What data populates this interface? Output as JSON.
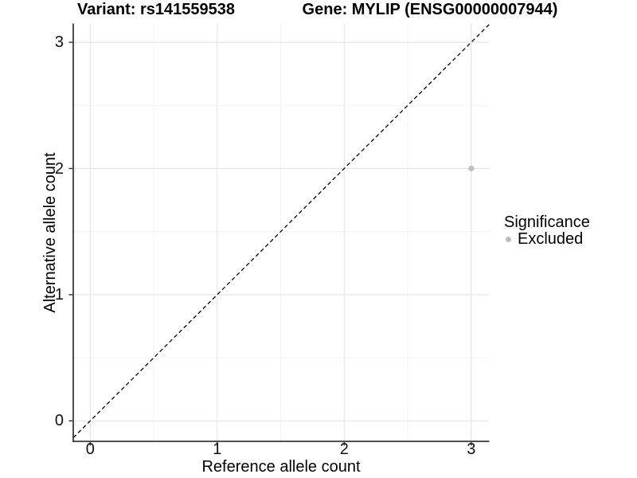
{
  "chart_data": {
    "type": "scatter",
    "title_left": "Variant: rs141559538",
    "title_right": "Gene: MYLIP (ENSG00000007944)",
    "xlabel": "Reference allele count",
    "ylabel": "Alternative allele count",
    "xlim": [
      -0.133,
      3.143
    ],
    "ylim": [
      -0.162,
      3.149
    ],
    "x_ticks": [
      0,
      1,
      2,
      3
    ],
    "y_ticks": [
      0,
      1,
      2,
      3
    ],
    "x_minor_ticks": [
      0.5,
      1.5,
      2.5
    ],
    "y_minor_ticks": [
      0.5,
      1.5,
      2.5
    ],
    "grid": "major+minor",
    "reference_line": {
      "slope": 1,
      "intercept": 0,
      "style": "dashed",
      "color": "#000000"
    },
    "series": [
      {
        "name": "Excluded",
        "color": "#BEBEBE",
        "points": [
          {
            "x": 3,
            "y": 2
          }
        ]
      }
    ],
    "legend": {
      "position": "right",
      "title": "Significance",
      "items": [
        {
          "label": "Excluded",
          "color": "#BEBEBE",
          "marker": "circle"
        }
      ]
    }
  },
  "colors": {
    "background": "#FFFFFF",
    "grid_major": "#E6E6E6",
    "grid_minor": "#F2F2F2",
    "axis_line": "#3a3a3a",
    "tick_mark": "#3a3a3a",
    "tick_text": "#111111",
    "title_text": "#000000"
  }
}
